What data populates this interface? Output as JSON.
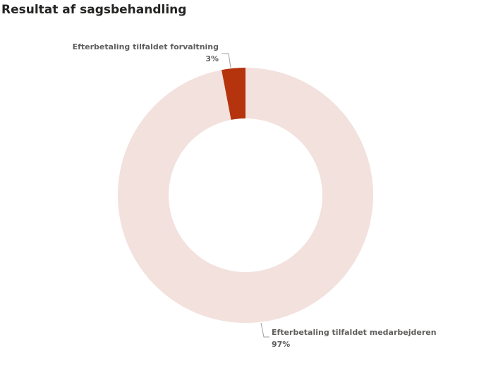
{
  "chart_data": {
    "type": "donut",
    "title": "Resultat af sagsbehandling",
    "categories": [
      "Efterbetaling tilfaldet medarbejderen",
      "Efterbetaling tilfaldet forvaltning"
    ],
    "values": [
      97,
      3
    ],
    "value_labels": [
      "97%",
      "3%"
    ],
    "colors": [
      "#f2e1dc",
      "#b5330d"
    ]
  }
}
